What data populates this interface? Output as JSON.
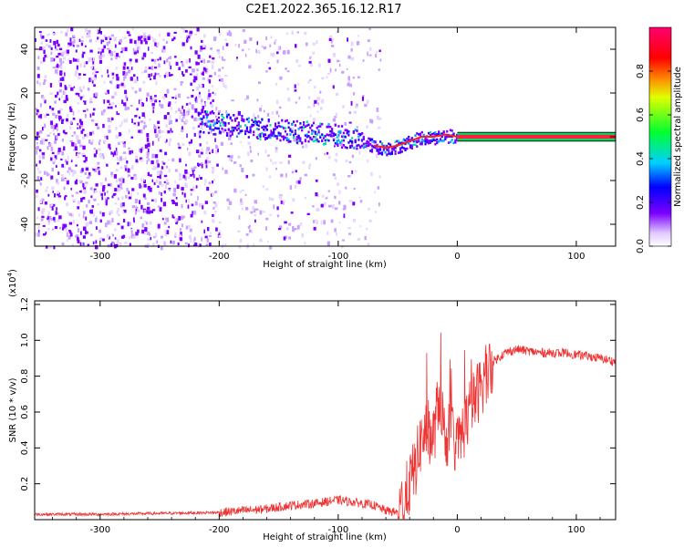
{
  "title": "C2E1.2022.365.16.12.R17",
  "colors": {
    "snr_line": "#ee3333",
    "spectrum_points": "#7b00ff",
    "background": "#ffffff"
  },
  "chart_data": [
    {
      "type": "heatmap",
      "title": "C2E1.2022.365.16.12.R17",
      "xlabel": "Height of straight line (km)",
      "ylabel": "Frequency (Hz)",
      "xlim": [
        -355,
        133
      ],
      "ylim": [
        -50,
        50
      ],
      "x_ticks": [
        -300,
        -200,
        -100,
        0,
        100
      ],
      "x_tick_labels": [
        "-300",
        "-200",
        "-100",
        "0",
        "100"
      ],
      "y_ticks": [
        -40,
        -20,
        0,
        20,
        40
      ],
      "y_tick_labels": [
        "-40",
        "-20",
        "0",
        "20",
        "40"
      ],
      "colorbar": {
        "label": "Normalized spectral amplitude",
        "range": [
          0,
          1
        ],
        "ticks": [
          0.0,
          0.2,
          0.4,
          0.6,
          0.8
        ],
        "tick_labels": [
          "0.0",
          "0.2",
          "0.4",
          "0.6",
          "0.8"
        ],
        "colormap": "rainbow (white-violet-blue-cyan-green-yellow-red-magenta)"
      },
      "signal_trace": {
        "description_values": "center frequency (Hz) vs height (km)",
        "x": [
          -218,
          -200,
          -180,
          -160,
          -140,
          -120,
          -100,
          -80,
          -70,
          -60,
          -50,
          -40,
          -30,
          -20,
          -10,
          0,
          133
        ],
        "frequency": [
          8,
          6,
          5,
          4,
          3,
          2,
          1,
          -2,
          -4,
          -5,
          -4,
          -2,
          0,
          0,
          1,
          0,
          0
        ],
        "peak_amplitude": [
          0.4,
          0.45,
          0.45,
          0.45,
          0.45,
          0.45,
          0.45,
          0.5,
          0.55,
          0.85,
          0.85,
          0.85,
          0.9,
          0.9,
          0.9,
          0.9,
          0.9
        ]
      },
      "noise_regions": [
        {
          "x_range": [
            -355,
            -200
          ],
          "density": "dense"
        },
        {
          "x_range": [
            -200,
            -65
          ],
          "density": "sparse"
        }
      ]
    },
    {
      "type": "line",
      "xlabel": "Height of straight line (km)",
      "ylabel": "SNR (10 * v/v)",
      "y_multiplier_label": "(x10",
      "y_multiplier_exponent": "4",
      "xlim": [
        -355,
        133
      ],
      "ylim": [
        0,
        12200
      ],
      "x_ticks": [
        -300,
        -200,
        -100,
        0,
        100
      ],
      "x_tick_labels": [
        "-300",
        "-200",
        "-100",
        "0",
        "100"
      ],
      "y_ticks": [
        2000,
        4000,
        6000,
        8000,
        10000,
        12000
      ],
      "y_tick_labels": [
        "0.2",
        "0.4",
        "0.6",
        "0.8",
        "1.0",
        "1.2"
      ],
      "series": [
        {
          "x": [
            -355,
            -300,
            -250,
            -200,
            -180,
            -160,
            -140,
            -120,
            -110,
            -100,
            -90,
            -80,
            -70,
            -60,
            -50,
            -45,
            -40,
            -35,
            -30,
            -25,
            -20,
            -15,
            -10,
            -5,
            0,
            5,
            10,
            20,
            30,
            40,
            50,
            60,
            70,
            80,
            90,
            100,
            110,
            120,
            133
          ],
          "y": [
            300,
            300,
            350,
            400,
            500,
            600,
            800,
            900,
            1000,
            1100,
            1000,
            900,
            800,
            500,
            400,
            1000,
            2000,
            3000,
            4500,
            5000,
            4500,
            7000,
            4500,
            5000,
            4000,
            5000,
            6000,
            7500,
            8800,
            9300,
            9500,
            9400,
            9300,
            9300,
            9300,
            9200,
            9100,
            9000,
            8800
          ]
        }
      ]
    }
  ]
}
